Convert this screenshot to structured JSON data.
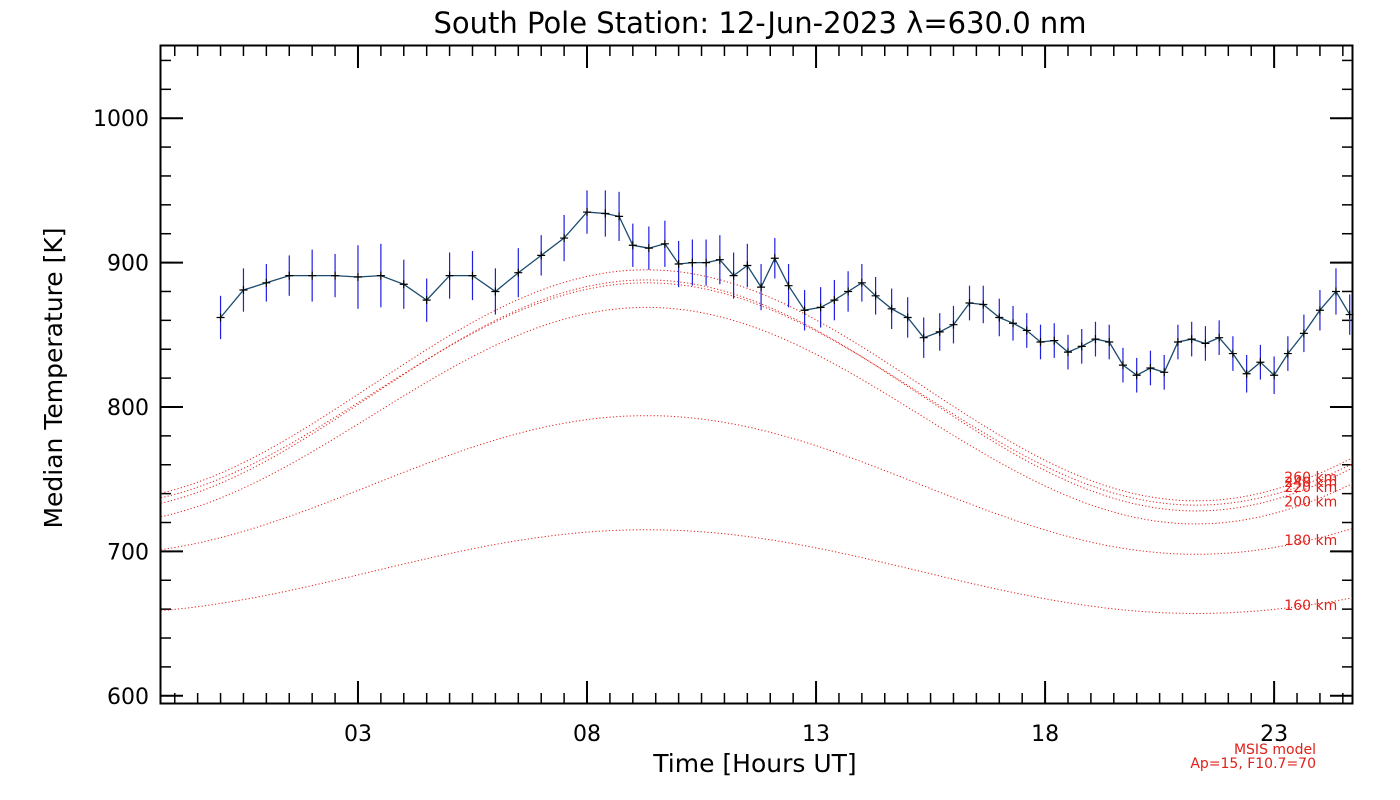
{
  "chart_data": {
    "type": "line",
    "title": "South Pole Station: 12-Jun-2023 λ=630.0 nm",
    "xlabel": "Time [Hours UT]",
    "ylabel": "Median Temperature [K]",
    "xlim": [
      -1.3,
      24.7
    ],
    "ylim": [
      595,
      1050
    ],
    "xticks": [
      3,
      8,
      13,
      18,
      23
    ],
    "xtick_labels": [
      "03",
      "08",
      "13",
      "18",
      "23"
    ],
    "yticks": [
      600,
      700,
      800,
      900,
      1000
    ],
    "ytick_labels": [
      "600",
      "700",
      "800",
      "900",
      "1000"
    ],
    "x_minor_step": 0.5,
    "y_minor_step": 20,
    "observed": {
      "name": "Observed temperature",
      "color": "#1a4b6e",
      "errorbar_color": "#1f1fe0",
      "points": [
        [
          0.0,
          862,
          15
        ],
        [
          0.5,
          881,
          15
        ],
        [
          1.0,
          886,
          13
        ],
        [
          1.5,
          891,
          14
        ],
        [
          2.0,
          891,
          18
        ],
        [
          2.5,
          891,
          15
        ],
        [
          3.0,
          890,
          22
        ],
        [
          3.5,
          891,
          22
        ],
        [
          4.0,
          885,
          17
        ],
        [
          4.5,
          874,
          15
        ],
        [
          5.0,
          891,
          16
        ],
        [
          5.5,
          891,
          17
        ],
        [
          6.0,
          880,
          16
        ],
        [
          6.5,
          893,
          17
        ],
        [
          7.0,
          905,
          14
        ],
        [
          7.5,
          917,
          16
        ],
        [
          8.0,
          935,
          15
        ],
        [
          8.4,
          934,
          16
        ],
        [
          8.7,
          932,
          17
        ],
        [
          9.0,
          912,
          15
        ],
        [
          9.35,
          910,
          15
        ],
        [
          9.7,
          913,
          16
        ],
        [
          10.0,
          899,
          16
        ],
        [
          10.3,
          900,
          16
        ],
        [
          10.6,
          900,
          16
        ],
        [
          10.9,
          902,
          17
        ],
        [
          11.2,
          891,
          16
        ],
        [
          11.5,
          898,
          15
        ],
        [
          11.8,
          883,
          16
        ],
        [
          12.1,
          903,
          14
        ],
        [
          12.4,
          884,
          15
        ],
        [
          12.75,
          867,
          14
        ],
        [
          13.1,
          869,
          14
        ],
        [
          13.4,
          874,
          14
        ],
        [
          13.7,
          880,
          14
        ],
        [
          14.0,
          886,
          13
        ],
        [
          14.3,
          877,
          13
        ],
        [
          14.65,
          868,
          14
        ],
        [
          15.0,
          862,
          14
        ],
        [
          15.35,
          848,
          14
        ],
        [
          15.7,
          852,
          13
        ],
        [
          16.0,
          857,
          13
        ],
        [
          16.35,
          872,
          12
        ],
        [
          16.65,
          871,
          13
        ],
        [
          17.0,
          862,
          13
        ],
        [
          17.3,
          858,
          12
        ],
        [
          17.6,
          853,
          12
        ],
        [
          17.9,
          845,
          12
        ],
        [
          18.2,
          846,
          12
        ],
        [
          18.5,
          838,
          12
        ],
        [
          18.8,
          842,
          12
        ],
        [
          19.1,
          847,
          12
        ],
        [
          19.4,
          845,
          12
        ],
        [
          19.7,
          829,
          12
        ],
        [
          20.0,
          822,
          12
        ],
        [
          20.3,
          827,
          12
        ],
        [
          20.6,
          824,
          12
        ],
        [
          20.9,
          845,
          12
        ],
        [
          21.2,
          847,
          12
        ],
        [
          21.5,
          844,
          12
        ],
        [
          21.8,
          848,
          12
        ],
        [
          22.1,
          837,
          12
        ],
        [
          22.4,
          823,
          13
        ],
        [
          22.7,
          831,
          12
        ],
        [
          23.0,
          822,
          13
        ],
        [
          23.3,
          837,
          12
        ],
        [
          23.65,
          851,
          13
        ],
        [
          24.0,
          867,
          14
        ],
        [
          24.35,
          880,
          16
        ],
        [
          24.65,
          864,
          14
        ]
      ]
    },
    "model": {
      "name": "MSIS model",
      "params": "Ap=15, F10.7=70",
      "color": "#e0201a",
      "curve_shape": "T = base + amp*cos(2*pi*(h - 9.3)/24), shown for heights 160-260 km",
      "series": [
        {
          "name": "160 km",
          "base": 686,
          "amp": 29
        },
        {
          "name": "180 km",
          "base": 746,
          "amp": 48
        },
        {
          "name": "200 km",
          "base": 794,
          "amp": 75
        },
        {
          "name": "220 km",
          "base": 808,
          "amp": 80
        },
        {
          "name": "240 km",
          "base": 809,
          "amp": 77
        },
        {
          "name": "260 km",
          "base": 815,
          "amp": 80
        }
      ]
    }
  }
}
